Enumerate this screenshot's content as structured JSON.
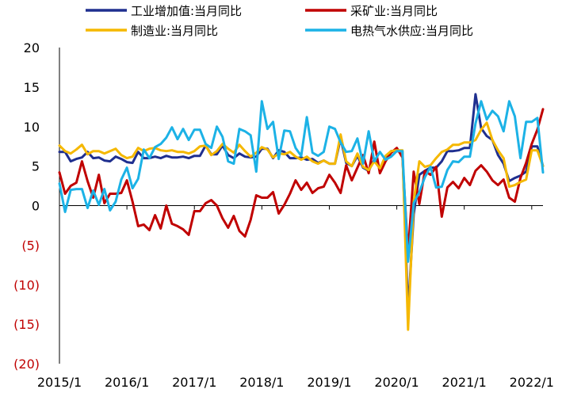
{
  "chart_data": {
    "type": "line",
    "title": "",
    "xlabel": "",
    "ylabel": "",
    "ylim": [
      -20,
      20
    ],
    "yticks": [
      {
        "value": 20,
        "label": "20"
      },
      {
        "value": 15,
        "label": "15"
      },
      {
        "value": 10,
        "label": "10"
      },
      {
        "value": 5,
        "label": "5"
      },
      {
        "value": 0,
        "label": "0"
      },
      {
        "value": -5,
        "label": "(5)"
      },
      {
        "value": -10,
        "label": "(10)"
      },
      {
        "value": -15,
        "label": "(15)"
      },
      {
        "value": -20,
        "label": "(20)"
      }
    ],
    "x": [
      "2015/1",
      "2015/2",
      "2015/3",
      "2015/4",
      "2015/5",
      "2015/6",
      "2015/7",
      "2015/8",
      "2015/9",
      "2015/10",
      "2015/11",
      "2015/12",
      "2016/1",
      "2016/2",
      "2016/3",
      "2016/4",
      "2016/5",
      "2016/6",
      "2016/7",
      "2016/8",
      "2016/9",
      "2016/10",
      "2016/11",
      "2016/12",
      "2017/1",
      "2017/2",
      "2017/3",
      "2017/4",
      "2017/5",
      "2017/6",
      "2017/7",
      "2017/8",
      "2017/9",
      "2017/10",
      "2017/11",
      "2017/12",
      "2018/1",
      "2018/2",
      "2018/3",
      "2018/4",
      "2018/5",
      "2018/6",
      "2018/7",
      "2018/8",
      "2018/9",
      "2018/10",
      "2018/11",
      "2018/12",
      "2019/1",
      "2019/2",
      "2019/3",
      "2019/4",
      "2019/5",
      "2019/6",
      "2019/7",
      "2019/8",
      "2019/9",
      "2019/10",
      "2019/11",
      "2019/12",
      "2020/1",
      "2020/2",
      "2020/3",
      "2020/4",
      "2020/5",
      "2020/6",
      "2020/7",
      "2020/8",
      "2020/9",
      "2020/10",
      "2020/11",
      "2020/12",
      "2021/1",
      "2021/2",
      "2021/3",
      "2021/4",
      "2021/5",
      "2021/6",
      "2021/7",
      "2021/8",
      "2021/9",
      "2021/10",
      "2021/11",
      "2021/12",
      "2022/1",
      "2022/2",
      "2022/3"
    ],
    "x_tick_labels": [
      "2015/1",
      "2016/1",
      "2017/1",
      "2018/1",
      "2019/1",
      "2020/1",
      "2021/1",
      "2022/1"
    ],
    "legend_position": "top",
    "series": [
      {
        "name": "工业增加值:当月同比",
        "color": "#1f2f8f",
        "values": [
          6.8,
          6.8,
          5.6,
          5.9,
          6.1,
          6.8,
          6.0,
          6.1,
          5.7,
          5.6,
          6.2,
          5.9,
          5.5,
          5.4,
          6.8,
          6.0,
          6.0,
          6.2,
          6.0,
          6.3,
          6.1,
          6.1,
          6.2,
          6.0,
          6.3,
          6.3,
          7.6,
          6.5,
          6.5,
          7.6,
          6.4,
          6.0,
          6.6,
          6.2,
          6.1,
          6.2,
          7.2,
          7.2,
          6.0,
          7.0,
          6.8,
          6.0,
          6.0,
          6.1,
          5.8,
          5.9,
          5.4,
          5.7,
          5.3,
          5.3,
          8.5,
          5.4,
          5.0,
          6.3,
          4.8,
          4.4,
          5.8,
          4.7,
          6.2,
          6.9,
          6.9,
          6.9,
          -13.5,
          -1.1,
          3.9,
          4.4,
          4.8,
          4.8,
          5.6,
          6.9,
          6.9,
          7.0,
          7.3,
          7.3,
          14.1,
          9.8,
          8.8,
          8.3,
          6.4,
          5.3,
          3.1,
          3.5,
          3.8,
          4.3,
          7.5,
          7.5,
          5.0
        ]
      },
      {
        "name": "采矿业:当月同比",
        "color": "#c00000",
        "values": [
          4.2,
          1.5,
          2.5,
          2.9,
          5.6,
          3.1,
          1.0,
          3.9,
          0.3,
          1.5,
          1.5,
          1.6,
          3.2,
          0.5,
          -2.6,
          -2.4,
          -3.1,
          -1.2,
          -2.9,
          0.0,
          -2.3,
          -2.6,
          -3.0,
          -3.7,
          -0.7,
          -0.7,
          0.3,
          0.7,
          0.0,
          -1.6,
          -2.8,
          -1.3,
          -3.2,
          -3.9,
          -1.8,
          1.3,
          1.0,
          1.0,
          1.7,
          -1.0,
          0.1,
          1.5,
          3.2,
          2.0,
          2.9,
          1.6,
          2.2,
          2.4,
          3.9,
          2.9,
          1.6,
          5.1,
          3.2,
          4.8,
          6.4,
          4.1,
          8.1,
          4.1,
          5.6,
          6.7,
          7.3,
          6.1,
          -6.0,
          4.3,
          0.2,
          4.4,
          3.9,
          4.9,
          -1.4,
          2.3,
          3.0,
          2.2,
          3.5,
          2.6,
          4.4,
          5.1,
          4.3,
          3.2,
          2.6,
          3.3,
          1.0,
          0.5,
          3.5,
          5.4,
          7.8,
          9.6,
          12.2
        ]
      },
      {
        "name": "制造业:当月同比",
        "color": "#f5b800",
        "values": [
          7.6,
          6.9,
          6.6,
          7.1,
          7.7,
          6.5,
          6.9,
          6.9,
          6.6,
          6.9,
          7.2,
          6.4,
          6.0,
          6.2,
          7.3,
          6.9,
          7.2,
          7.3,
          7.0,
          6.9,
          7.0,
          6.8,
          6.8,
          6.6,
          6.9,
          7.5,
          7.6,
          6.4,
          6.9,
          7.8,
          7.2,
          6.7,
          7.7,
          6.9,
          6.2,
          6.7,
          7.4,
          7.1,
          6.1,
          6.6,
          6.5,
          6.8,
          6.2,
          5.8,
          6.2,
          5.6,
          5.3,
          5.7,
          5.3,
          5.3,
          9.0,
          5.6,
          5.0,
          6.6,
          4.9,
          4.5,
          5.6,
          4.7,
          6.3,
          6.9,
          7.0,
          7.0,
          -15.7,
          0.5,
          5.6,
          4.9,
          5.1,
          6.0,
          6.8,
          7.1,
          7.7,
          7.7,
          8.0,
          8.0,
          8.3,
          9.6,
          10.5,
          8.3,
          7.0,
          6.0,
          2.4,
          2.6,
          3.0,
          3.3,
          7.0,
          7.0,
          5.0
        ]
      },
      {
        "name": "电热气水供应:当月同比",
        "color": "#1cb2e6",
        "values": [
          2.8,
          -0.8,
          2.0,
          2.1,
          2.1,
          -0.3,
          1.9,
          0.1,
          2.1,
          -0.6,
          0.5,
          3.3,
          4.8,
          2.2,
          3.4,
          7.1,
          6.0,
          7.4,
          7.8,
          8.6,
          9.9,
          8.4,
          9.7,
          8.3,
          9.6,
          9.6,
          7.8,
          7.3,
          10.0,
          8.7,
          5.6,
          5.3,
          9.7,
          9.4,
          8.9,
          4.3,
          13.2,
          9.7,
          10.6,
          5.9,
          9.5,
          9.4,
          7.3,
          6.3,
          11.2,
          6.7,
          6.3,
          6.8,
          10.0,
          9.7,
          8.0,
          6.8,
          6.9,
          8.5,
          5.3,
          9.4,
          5.6,
          6.8,
          5.8,
          6.2,
          6.9,
          6.9,
          -7.1,
          0.3,
          1.7,
          3.6,
          4.9,
          2.3,
          2.4,
          4.5,
          5.6,
          5.5,
          6.2,
          6.2,
          10.4,
          13.2,
          10.9,
          12.0,
          11.3,
          9.4,
          13.2,
          11.3,
          6.0,
          10.6,
          10.6,
          11.1,
          4.2
        ]
      }
    ]
  }
}
